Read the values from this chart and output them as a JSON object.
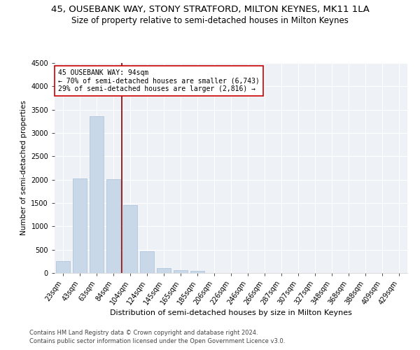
{
  "title": "45, OUSEBANK WAY, STONY STRATFORD, MILTON KEYNES, MK11 1LA",
  "subtitle": "Size of property relative to semi-detached houses in Milton Keynes",
  "xlabel": "Distribution of semi-detached houses by size in Milton Keynes",
  "ylabel": "Number of semi-detached properties",
  "categories": [
    "23sqm",
    "43sqm",
    "63sqm",
    "84sqm",
    "104sqm",
    "124sqm",
    "145sqm",
    "165sqm",
    "185sqm",
    "206sqm",
    "226sqm",
    "246sqm",
    "266sqm",
    "287sqm",
    "307sqm",
    "327sqm",
    "348sqm",
    "368sqm",
    "388sqm",
    "409sqm",
    "429sqm"
  ],
  "values": [
    250,
    2030,
    3360,
    2010,
    1450,
    470,
    105,
    60,
    40,
    0,
    0,
    0,
    0,
    0,
    0,
    0,
    0,
    0,
    0,
    0,
    0
  ],
  "bar_color": "#c8d8e8",
  "bar_edgecolor": "#a8c0d8",
  "vline_color": "#8b0000",
  "vline_x": 3.5,
  "annotation_text": "45 OUSEBANK WAY: 94sqm\n← 70% of semi-detached houses are smaller (6,743)\n29% of semi-detached houses are larger (2,816) →",
  "annotation_box_color": "#ffffff",
  "annotation_box_edgecolor": "#cc0000",
  "ylim": [
    0,
    4500
  ],
  "yticks": [
    0,
    500,
    1000,
    1500,
    2000,
    2500,
    3000,
    3500,
    4000,
    4500
  ],
  "background_color": "#eef2f6",
  "footer1": "Contains HM Land Registry data © Crown copyright and database right 2024.",
  "footer2": "Contains public sector information licensed under the Open Government Licence v3.0.",
  "title_fontsize": 9.5,
  "subtitle_fontsize": 8.5,
  "xlabel_fontsize": 8,
  "ylabel_fontsize": 7.5,
  "tick_fontsize": 7,
  "annotation_fontsize": 7,
  "footer_fontsize": 6
}
